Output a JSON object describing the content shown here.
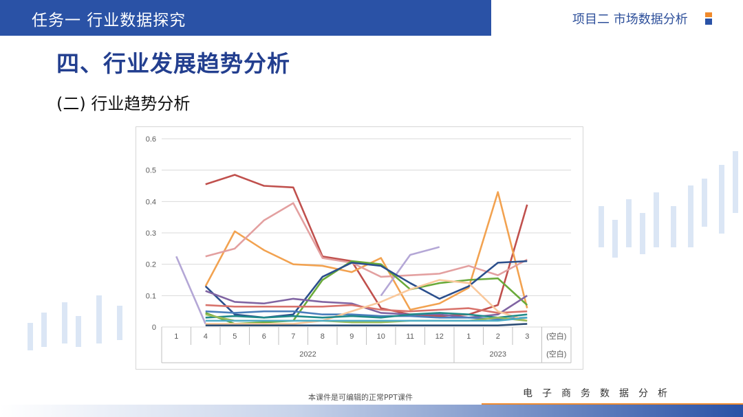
{
  "header": {
    "title": "任务一 行业数据探究",
    "project": "项目二 市场数据分析"
  },
  "slide": {
    "heading": "四、行业发展趋势分析",
    "subheading": "(二) 行业趋势分析",
    "footer_note": "本课件是可编辑的正常PPT课件",
    "footer_right": "电子商务数据分析"
  },
  "chart_data": {
    "type": "line",
    "ylim": [
      0,
      0.6
    ],
    "yticks": [
      "0",
      "0.1",
      "0.2",
      "0.3",
      "0.4",
      "0.5",
      "0.6"
    ],
    "grid": true,
    "categories": [
      "1",
      "4",
      "5",
      "6",
      "7",
      "8",
      "9",
      "10",
      "11",
      "12",
      "1",
      "2",
      "3",
      "(空白)"
    ],
    "groups": [
      {
        "label": "2022",
        "from": 0,
        "to": 9
      },
      {
        "label": "2023",
        "from": 10,
        "to": 12
      },
      {
        "label": "(空白)",
        "from": 13,
        "to": 13
      }
    ],
    "series": [
      {
        "color": "#c0504d",
        "values": [
          null,
          0.455,
          0.485,
          0.45,
          0.445,
          0.225,
          0.21,
          0.06,
          0.04,
          0.035,
          0.04,
          0.07,
          0.39,
          null
        ]
      },
      {
        "color": "#f2a250",
        "values": [
          null,
          0.13,
          0.305,
          0.245,
          0.2,
          0.195,
          0.175,
          0.22,
          0.055,
          0.075,
          0.125,
          0.43,
          0.06,
          null
        ]
      },
      {
        "color": "#e3a0a0",
        "values": [
          null,
          0.225,
          0.25,
          0.34,
          0.395,
          0.22,
          0.205,
          0.16,
          0.165,
          0.17,
          0.195,
          0.165,
          0.215,
          null
        ]
      },
      {
        "color": "#b4a7d6",
        "values": [
          0.225,
          0.01,
          null,
          null,
          null,
          null,
          null,
          0.1,
          0.23,
          0.255,
          null,
          null,
          null,
          null
        ]
      },
      {
        "color": "#6aaa3a",
        "values": [
          null,
          0.045,
          0.01,
          0.015,
          0.02,
          0.15,
          0.21,
          0.2,
          0.12,
          0.14,
          0.15,
          0.155,
          0.07,
          null
        ]
      },
      {
        "color": "#2b4f8c",
        "values": [
          null,
          0.13,
          0.04,
          0.03,
          0.04,
          0.16,
          0.205,
          0.195,
          0.14,
          0.09,
          0.13,
          0.205,
          0.21,
          null
        ]
      },
      {
        "color": "#8064a2",
        "values": [
          null,
          0.115,
          0.08,
          0.075,
          0.09,
          0.08,
          0.075,
          0.045,
          0.04,
          0.04,
          0.03,
          0.04,
          0.1,
          null
        ]
      },
      {
        "color": "#d8736c",
        "values": [
          null,
          0.07,
          0.065,
          0.065,
          0.065,
          0.065,
          0.07,
          0.055,
          0.05,
          0.055,
          0.06,
          0.045,
          0.05,
          null
        ]
      },
      {
        "color": "#4a7ebb",
        "values": [
          null,
          0.05,
          0.045,
          0.05,
          0.05,
          0.04,
          0.04,
          0.035,
          0.035,
          0.03,
          0.03,
          0.025,
          0.03,
          null
        ]
      },
      {
        "color": "#f9c89b",
        "values": [
          null,
          0.01,
          0.01,
          0.01,
          0.01,
          0.02,
          0.05,
          0.08,
          0.12,
          0.15,
          0.14,
          0.05,
          0.02,
          null
        ]
      },
      {
        "color": "#1f8a8a",
        "values": [
          null,
          0.03,
          0.035,
          0.03,
          0.035,
          0.03,
          0.035,
          0.03,
          0.04,
          0.045,
          0.04,
          0.03,
          0.04,
          null
        ]
      },
      {
        "color": "#9bbb59",
        "values": [
          null,
          0.04,
          0.02,
          0.02,
          0.02,
          0.02,
          0.015,
          0.015,
          0.02,
          0.02,
          0.02,
          0.03,
          0.02,
          null
        ]
      },
      {
        "color": "#2c4d75",
        "values": [
          null,
          0.005,
          0.005,
          0.005,
          0.005,
          0.005,
          0.005,
          0.005,
          0.005,
          0.005,
          0.005,
          0.005,
          0.01,
          null
        ]
      },
      {
        "color": "#4bacc6",
        "values": [
          null,
          0.02,
          0.02,
          0.02,
          0.02,
          0.02,
          0.02,
          0.02,
          0.02,
          0.02,
          0.02,
          0.02,
          0.03,
          null
        ]
      }
    ]
  }
}
